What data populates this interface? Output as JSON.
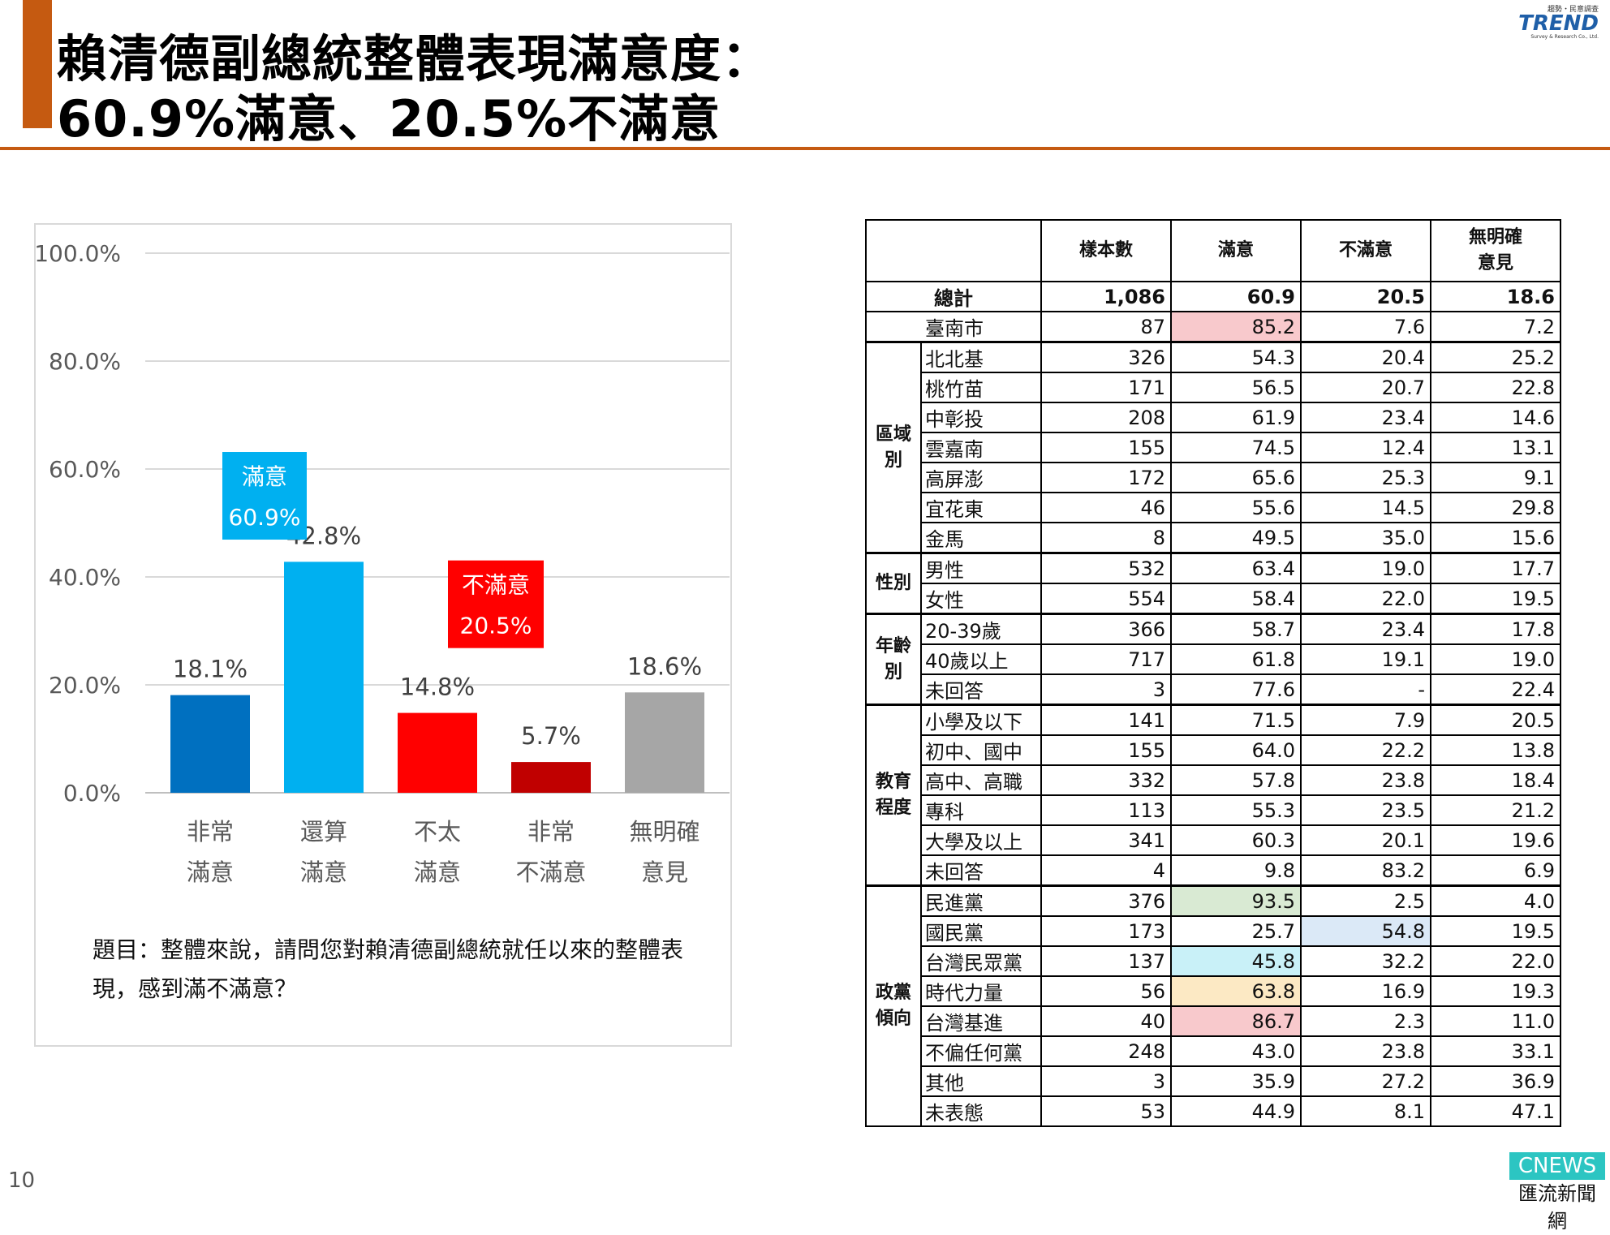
{
  "title": {
    "line1": "賴清德副總統整體表現滿意度：",
    "line2": "60.9%滿意、20.5%不滿意"
  },
  "logo": {
    "small": "趨勢・民意調查",
    "brand": "TREND",
    "tagline": "Survey & Research Co., Ltd."
  },
  "page_number": "10",
  "watermark": {
    "top": "CNEWS",
    "bottom": "匯流新聞網"
  },
  "colors": {
    "accent": "#c55a11",
    "very_satisfied": "#0070c0",
    "somewhat_satisfied": "#00b0f0",
    "not_very": "#ff0000",
    "very_unsatisfied": "#c00000",
    "no_opinion": "#a6a6a6"
  },
  "chart_data": {
    "type": "bar",
    "categories": [
      [
        "非常",
        "滿意"
      ],
      [
        "還算",
        "滿意"
      ],
      [
        "不太",
        "滿意"
      ],
      [
        "非常",
        "不滿意"
      ],
      [
        "無明確",
        "意見"
      ]
    ],
    "values": [
      18.1,
      42.8,
      14.8,
      5.7,
      18.6
    ],
    "value_labels": [
      "18.1%",
      "42.8%",
      "14.8%",
      "5.7%",
      "18.6%"
    ],
    "bar_colors": [
      "#0070c0",
      "#00b0f0",
      "#ff0000",
      "#c00000",
      "#a6a6a6"
    ],
    "ylim": [
      0,
      100
    ],
    "yticks": [
      "0.0%",
      "20.0%",
      "40.0%",
      "60.0%",
      "80.0%",
      "100.0%"
    ],
    "grid": true,
    "annotations": [
      {
        "label": "滿意",
        "value": "60.9%",
        "color": "#00b0f0"
      },
      {
        "label": "不滿意",
        "value": "20.5%",
        "color": "#ff0000"
      }
    ]
  },
  "question": "題目：整體來說，請問您對賴清德副總統就任以來的整體表現，感到滿不滿意？",
  "table": {
    "headers": [
      "樣本數",
      "滿意",
      "不滿意",
      [
        "無明確",
        "意見"
      ]
    ],
    "total": {
      "label": "總計",
      "values": [
        "1,086",
        "60.9",
        "20.5",
        "18.6"
      ]
    },
    "city": {
      "label": "臺南市",
      "values": [
        "87",
        "85.2",
        "7.6",
        "7.2"
      ],
      "highlight": {
        "col": 1,
        "color": "#f8c9cc"
      }
    },
    "groups": [
      {
        "name": [
          "區域",
          "別"
        ],
        "rows": [
          {
            "label": "北北基",
            "values": [
              "326",
              "54.3",
              "20.4",
              "25.2"
            ]
          },
          {
            "label": "桃竹苗",
            "values": [
              "171",
              "56.5",
              "20.7",
              "22.8"
            ]
          },
          {
            "label": "中彰投",
            "values": [
              "208",
              "61.9",
              "23.4",
              "14.6"
            ]
          },
          {
            "label": "雲嘉南",
            "values": [
              "155",
              "74.5",
              "12.4",
              "13.1"
            ]
          },
          {
            "label": "高屏澎",
            "values": [
              "172",
              "65.6",
              "25.3",
              "9.1"
            ]
          },
          {
            "label": "宜花東",
            "values": [
              "46",
              "55.6",
              "14.5",
              "29.8"
            ]
          },
          {
            "label": "金馬",
            "values": [
              "8",
              "49.5",
              "35.0",
              "15.6"
            ]
          }
        ]
      },
      {
        "name": [
          "性別"
        ],
        "rows": [
          {
            "label": "男性",
            "values": [
              "532",
              "63.4",
              "19.0",
              "17.7"
            ]
          },
          {
            "label": "女性",
            "values": [
              "554",
              "58.4",
              "22.0",
              "19.5"
            ]
          }
        ]
      },
      {
        "name": [
          "年齡",
          "別"
        ],
        "rows": [
          {
            "label": "20-39歲",
            "values": [
              "366",
              "58.7",
              "23.4",
              "17.8"
            ]
          },
          {
            "label": "40歲以上",
            "values": [
              "717",
              "61.8",
              "19.1",
              "19.0"
            ]
          },
          {
            "label": "未回答",
            "values": [
              "3",
              "77.6",
              "-",
              "22.4"
            ]
          }
        ]
      },
      {
        "name": [
          "教育",
          "程度"
        ],
        "rows": [
          {
            "label": "小學及以下",
            "values": [
              "141",
              "71.5",
              "7.9",
              "20.5"
            ]
          },
          {
            "label": "初中、國中",
            "values": [
              "155",
              "64.0",
              "22.2",
              "13.8"
            ]
          },
          {
            "label": "高中、高職",
            "values": [
              "332",
              "57.8",
              "23.8",
              "18.4"
            ]
          },
          {
            "label": "專科",
            "values": [
              "113",
              "55.3",
              "23.5",
              "21.2"
            ]
          },
          {
            "label": "大學及以上",
            "values": [
              "341",
              "60.3",
              "20.1",
              "19.6"
            ]
          },
          {
            "label": "未回答",
            "values": [
              "4",
              "9.8",
              "83.2",
              "6.9"
            ]
          }
        ]
      },
      {
        "name": [
          "政黨",
          "傾向"
        ],
        "rows": [
          {
            "label": "民進黨",
            "values": [
              "376",
              "93.5",
              "2.5",
              "4.0"
            ],
            "highlight": {
              "col": 1,
              "color": "#d9ead3"
            }
          },
          {
            "label": "國民黨",
            "values": [
              "173",
              "25.7",
              "54.8",
              "19.5"
            ],
            "highlight": {
              "col": 2,
              "color": "#dbe9f7"
            }
          },
          {
            "label": "台灣民眾黨",
            "values": [
              "137",
              "45.8",
              "32.2",
              "22.0"
            ],
            "highlight": {
              "col": 1,
              "color": "#c9f1f8"
            }
          },
          {
            "label": "時代力量",
            "values": [
              "56",
              "63.8",
              "16.9",
              "19.3"
            ],
            "highlight": {
              "col": 1,
              "color": "#fce9c4"
            }
          },
          {
            "label": "台灣基進",
            "values": [
              "40",
              "86.7",
              "2.3",
              "11.0"
            ],
            "highlight": {
              "col": 1,
              "color": "#f8c9cc"
            }
          },
          {
            "label": "不偏任何黨",
            "values": [
              "248",
              "43.0",
              "23.8",
              "33.1"
            ]
          },
          {
            "label": "其他",
            "values": [
              "3",
              "35.9",
              "27.2",
              "36.9"
            ]
          },
          {
            "label": "未表態",
            "values": [
              "53",
              "44.9",
              "8.1",
              "47.1"
            ]
          }
        ]
      }
    ]
  }
}
